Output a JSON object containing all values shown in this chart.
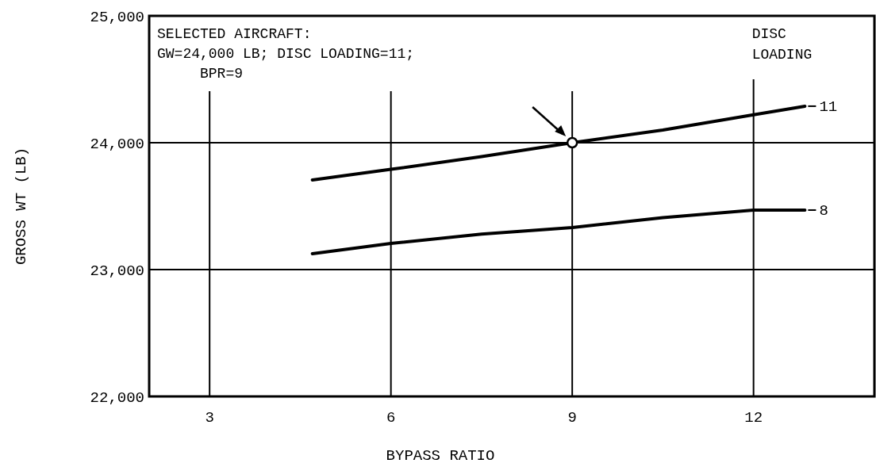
{
  "chart_data": {
    "type": "line",
    "xlabel": "BYPASS RATIO",
    "ylabel": "GROSS WT (LB)",
    "legend_title": "DISC\nLOADING",
    "xlim": [
      2,
      14
    ],
    "xticks": [
      3,
      6,
      9,
      12
    ],
    "ylim": [
      22000,
      25000
    ],
    "yticks": [
      {
        "value": 22000,
        "label": "22,000"
      },
      {
        "value": 23000,
        "label": "23,000"
      },
      {
        "value": 24000,
        "label": "24,000"
      },
      {
        "value": 25000,
        "label": "25,000"
      }
    ],
    "grid": true,
    "legend": "right",
    "marker": "none",
    "line_style": "solid",
    "series": [
      {
        "name": "11",
        "color": "#000000",
        "x": [
          4.7,
          6,
          7.5,
          9,
          10.5,
          12,
          12.85
        ],
        "values": [
          23706,
          23790,
          23890,
          24000,
          24100,
          24220,
          24288
        ]
      },
      {
        "name": "8",
        "color": "#000000",
        "x": [
          4.7,
          6,
          7.5,
          9,
          10.5,
          12,
          12.85
        ],
        "values": [
          23125,
          23206,
          23280,
          23331,
          23410,
          23469,
          23469
        ]
      },
      {
        "type": "scatter",
        "marker": "circle",
        "color": "#000000",
        "x": [
          9
        ],
        "values": [
          24000
        ]
      }
    ],
    "annotations": [
      "SELECTED AIRCRAFT:\nGW=24,000 LB; DISC LOADING=11;\n     BPR=9"
    ]
  }
}
